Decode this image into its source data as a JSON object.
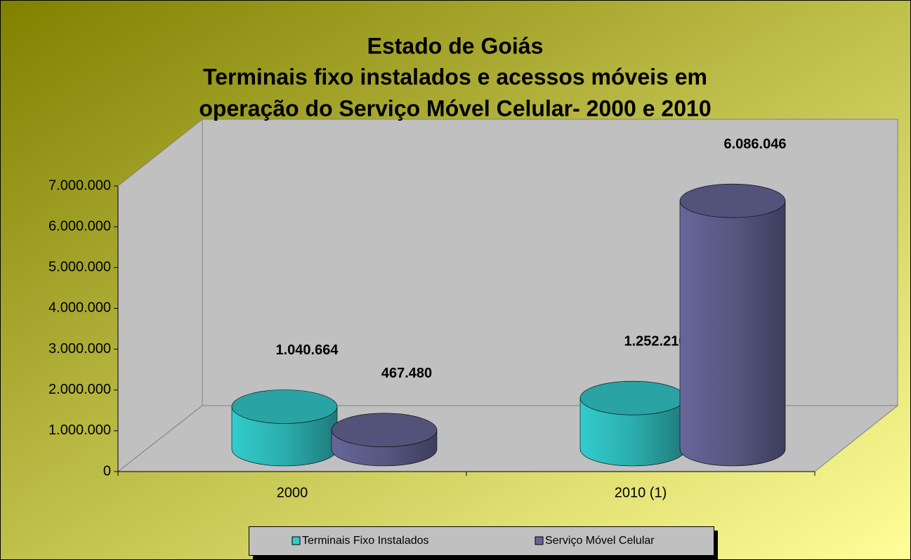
{
  "chart_data": {
    "type": "bar3d-cylinder",
    "title": [
      "Estado de Goiás",
      "Terminais fixo instalados e acessos móveis em",
      "operação do Serviço Móvel Celular- 2000 e 2010"
    ],
    "categories": [
      "2000",
      "2010 (1)"
    ],
    "series": [
      {
        "name": "Terminais Fixo Instalados",
        "color": "#33cccc",
        "values": [
          1040664,
          1252210
        ],
        "value_labels": [
          "1.040.664",
          "1.252.210"
        ]
      },
      {
        "name": "Serviço Móvel Celular",
        "color": "#666699",
        "values": [
          467480,
          6086046
        ],
        "value_labels": [
          "467.480",
          "6.086.046"
        ]
      }
    ],
    "ylim": [
      0,
      7000000
    ],
    "yticks": [
      0,
      {
        "value": 1000000,
        "label": "1.000.000"
      },
      {
        "value": 2000000,
        "label": "2.000.000"
      },
      {
        "value": 3000000,
        "label": "3.000.000"
      },
      {
        "value": 4000000,
        "label": "4.000.000"
      },
      {
        "value": 5000000,
        "label": "5.000.000"
      },
      {
        "value": 6000000,
        "label": "6.000.000"
      },
      {
        "value": 7000000,
        "label": "7.000.000"
      }
    ],
    "legend": "bottom"
  }
}
